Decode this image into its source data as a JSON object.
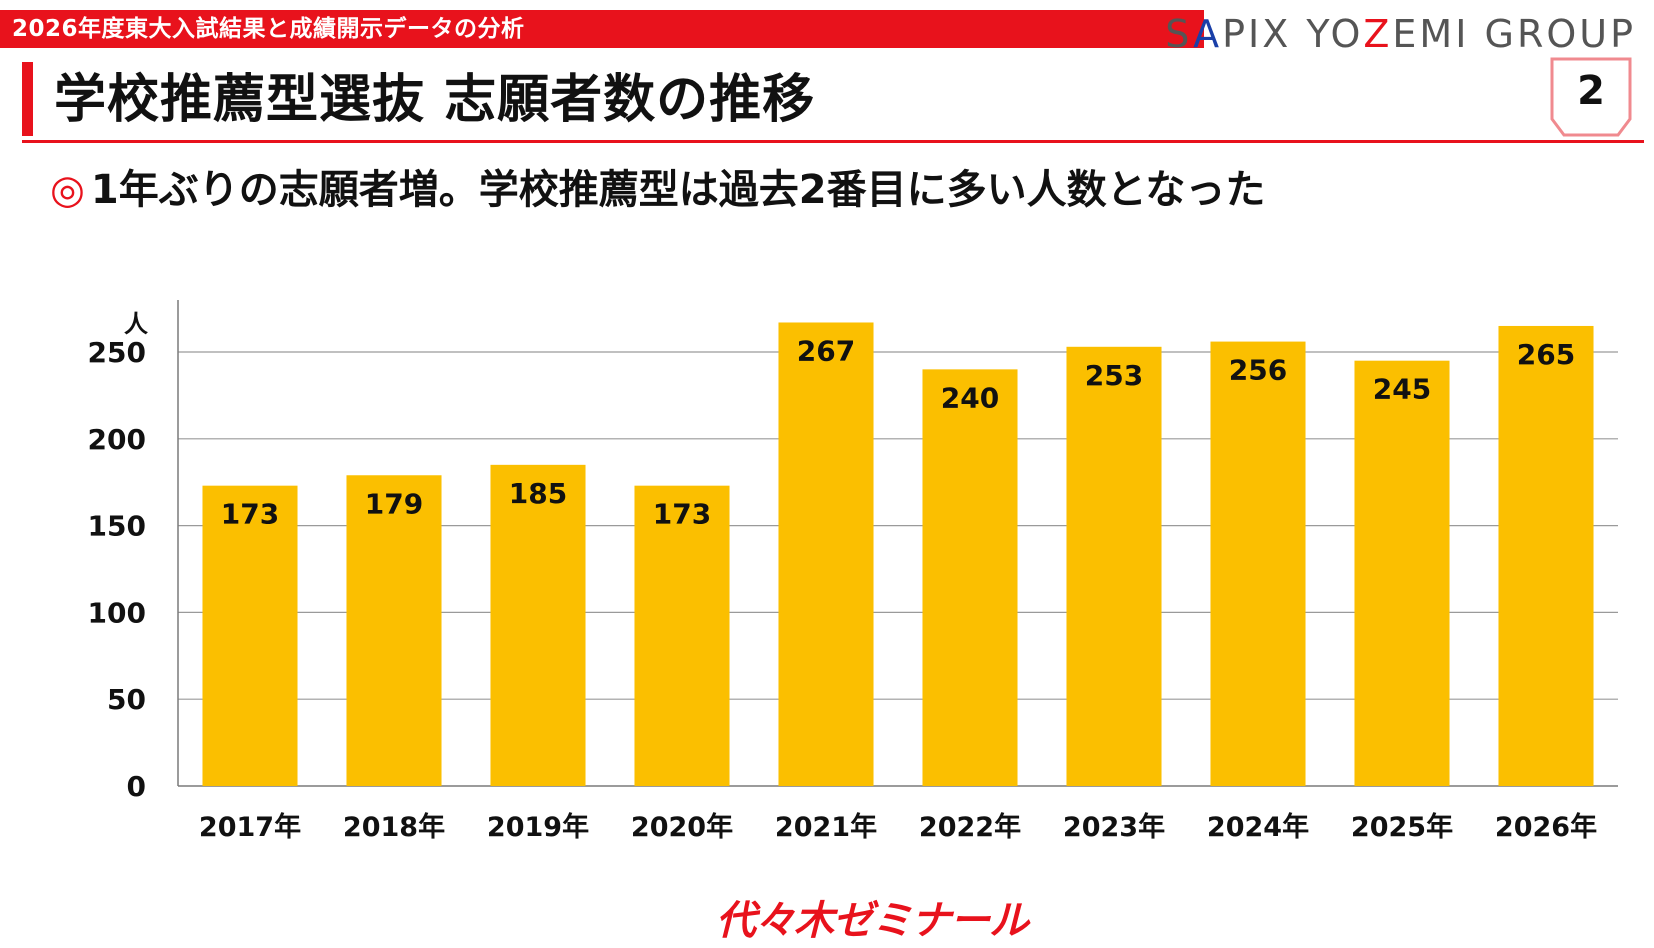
{
  "header": {
    "report_title": "2026年度東大入試結果と成績開示データの分析",
    "brand_parts": [
      "S",
      "A",
      "PIX YO",
      "Z",
      "EMI GROUP"
    ],
    "page_number": "2"
  },
  "slide": {
    "title": "学校推薦型選抜 志願者数の推移",
    "subtitle_bullet": "◎",
    "subtitle": "1年ぶりの志願者増。学校推薦型は過去2番目に多い人数となった"
  },
  "footer": {
    "logo_text": "代々木ゼミナール"
  },
  "colors": {
    "accent_red": "#e8121c",
    "bar": "#fbbf00",
    "brand_blue": "#1a3fa8"
  },
  "chart_data": {
    "type": "bar",
    "categories": [
      "2017年",
      "2018年",
      "2019年",
      "2020年",
      "2021年",
      "2022年",
      "2023年",
      "2024年",
      "2025年",
      "2026年"
    ],
    "values": [
      173,
      179,
      185,
      173,
      267,
      240,
      253,
      256,
      245,
      265
    ],
    "ylabel": "人",
    "ylim": [
      0,
      250
    ],
    "yticks": [
      0,
      50,
      100,
      150,
      200,
      250
    ],
    "grid": true,
    "legend": "none",
    "data_labels": "inside-top"
  }
}
